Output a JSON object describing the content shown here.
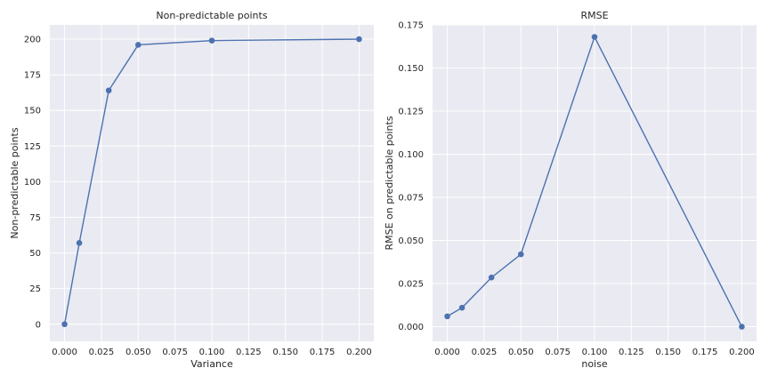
{
  "chart_data": [
    {
      "type": "line",
      "title": "Non-predictable points",
      "xlabel": "Variance",
      "ylabel": "Non-predictable points",
      "xlim": [
        -0.01,
        0.21
      ],
      "ylim": [
        -12,
        210
      ],
      "xticks": [
        0.0,
        0.025,
        0.05,
        0.075,
        0.1,
        0.125,
        0.15,
        0.175,
        0.2
      ],
      "xtick_labels": [
        "0.000",
        "0.025",
        "0.050",
        "0.075",
        "0.100",
        "0.125",
        "0.150",
        "0.175",
        "0.200"
      ],
      "yticks": [
        0,
        25,
        50,
        75,
        100,
        125,
        150,
        175,
        200
      ],
      "ytick_labels": [
        "0",
        "25",
        "50",
        "75",
        "100",
        "125",
        "150",
        "175",
        "200"
      ],
      "grid": true,
      "color": "#4c72b0",
      "x": [
        0.0,
        0.01,
        0.03,
        0.05,
        0.1,
        0.2
      ],
      "y": [
        0,
        57,
        164,
        196,
        199,
        200
      ]
    },
    {
      "type": "line",
      "title": "RMSE",
      "xlabel": "noise",
      "ylabel": "RMSE on predictable points",
      "xlim": [
        -0.01,
        0.21
      ],
      "ylim": [
        -0.0085,
        0.175
      ],
      "xticks": [
        0.0,
        0.025,
        0.05,
        0.075,
        0.1,
        0.125,
        0.15,
        0.175,
        0.2
      ],
      "xtick_labels": [
        "0.000",
        "0.025",
        "0.050",
        "0.075",
        "0.100",
        "0.125",
        "0.150",
        "0.175",
        "0.200"
      ],
      "yticks": [
        0.0,
        0.025,
        0.05,
        0.075,
        0.1,
        0.125,
        0.15,
        0.175
      ],
      "ytick_labels": [
        "0.000",
        "0.025",
        "0.050",
        "0.075",
        "0.100",
        "0.125",
        "0.150",
        "0.175"
      ],
      "grid": true,
      "color": "#4c72b0",
      "x": [
        0.0,
        0.01,
        0.03,
        0.05,
        0.1,
        0.2
      ],
      "y": [
        0.006,
        0.011,
        0.0285,
        0.042,
        0.168,
        0.0
      ]
    }
  ]
}
